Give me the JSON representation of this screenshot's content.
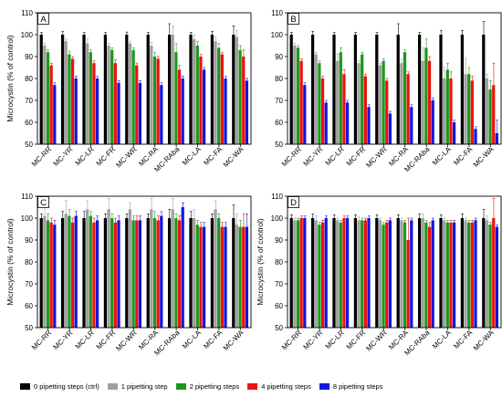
{
  "chart_data": [
    {
      "type": "bar",
      "panel_label": "A",
      "ylabel": "Microcystin  (% of control)",
      "ylim": [
        50,
        110
      ],
      "yticks": [
        50,
        60,
        70,
        80,
        90,
        100,
        110
      ],
      "categories": [
        "MC-RR",
        "MC-YR",
        "MC-LR",
        "MC-FR",
        "MC-WR",
        "MC-RA",
        "MC-RAba",
        "MC-LA",
        "MC-FA",
        "MC-WA"
      ],
      "series": [
        {
          "name": "0 pipetting steps (ctrl)",
          "values": [
            100,
            100,
            100,
            100,
            100,
            100,
            100,
            100,
            100,
            100
          ],
          "errors": [
            1,
            1.5,
            1,
            1,
            1.2,
            1,
            5,
            1,
            1.5,
            4
          ]
        },
        {
          "name": "1 pipetting step",
          "values": [
            95,
            97,
            96,
            95,
            96,
            95,
            100,
            98,
            97,
            99
          ],
          "errors": [
            1,
            1,
            2,
            1,
            1,
            1.5,
            4,
            2,
            2,
            3
          ]
        },
        {
          "name": "2 pipetting steps",
          "values": [
            92,
            91,
            92,
            93,
            93,
            90,
            92,
            95,
            94,
            93
          ],
          "errors": [
            1,
            1.5,
            1,
            1,
            1,
            2,
            4,
            2,
            2,
            2
          ]
        },
        {
          "name": "4 pipetting steps",
          "values": [
            86,
            89,
            87,
            87,
            86,
            89,
            84,
            90,
            91,
            90
          ],
          "errors": [
            1,
            1,
            1,
            1.5,
            1,
            1,
            2,
            1,
            1,
            3
          ]
        },
        {
          "name": "8 pipetting steps",
          "values": [
            77,
            80,
            80,
            78,
            78,
            77,
            80,
            84,
            80,
            79
          ],
          "errors": [
            1,
            1,
            1,
            1,
            1,
            1,
            1,
            1,
            1,
            1
          ]
        }
      ]
    },
    {
      "type": "bar",
      "panel_label": "B",
      "ylabel": "",
      "ylim": [
        50,
        110
      ],
      "yticks": [
        50,
        60,
        70,
        80,
        90,
        100,
        110
      ],
      "categories": [
        "MC-RR",
        "MC-YR",
        "MC-LR",
        "MC-FR",
        "MC-WR",
        "MC-RA",
        "MC-RAba",
        "MC-LA",
        "MC-FA",
        "MC-WA"
      ],
      "series": [
        {
          "name": "0 pipetting steps (ctrl)",
          "values": [
            100,
            100,
            100,
            100,
            100,
            100,
            100,
            100,
            100,
            100
          ],
          "errors": [
            1,
            1.5,
            1,
            1,
            1,
            5,
            1,
            2,
            2,
            6
          ]
        },
        {
          "name": "1 pipetting step",
          "values": [
            95,
            91,
            88,
            87,
            86,
            87,
            88,
            80,
            82,
            80
          ],
          "errors": [
            1,
            1,
            3,
            1,
            1,
            2,
            6,
            5,
            7,
            2
          ]
        },
        {
          "name": "2 pipetting steps",
          "values": [
            94,
            87,
            92,
            91,
            88,
            92,
            94,
            84,
            82,
            75
          ],
          "errors": [
            1,
            1,
            2,
            1,
            1,
            1,
            4,
            3,
            3,
            4
          ]
        },
        {
          "name": "4 pipetting steps",
          "values": [
            88,
            80,
            82,
            81,
            79,
            82,
            88,
            80,
            79,
            77
          ],
          "errors": [
            1,
            1,
            2,
            1,
            1,
            1,
            2,
            3,
            2,
            10
          ]
        },
        {
          "name": "8 pipetting steps",
          "values": [
            77,
            69,
            69,
            67,
            64,
            67,
            70,
            60,
            57,
            55
          ],
          "errors": [
            1,
            1,
            1,
            1,
            1,
            1,
            1,
            1,
            1,
            6
          ]
        }
      ]
    },
    {
      "type": "bar",
      "panel_label": "C",
      "ylabel": "Microcystin  (% of control)",
      "ylim": [
        50,
        110
      ],
      "yticks": [
        50,
        60,
        70,
        80,
        90,
        100,
        110
      ],
      "categories": [
        "MC-RR",
        "MC-YR",
        "MC-LR",
        "MC-FR",
        "MC-WR",
        "MC-RA",
        "MC-RAba",
        "MC-LA",
        "MC-FA",
        "MC-WA"
      ],
      "series": [
        {
          "name": "0 pipetting steps (ctrl)",
          "values": [
            100,
            100,
            100,
            100,
            100,
            100,
            100,
            100,
            100,
            100
          ],
          "errors": [
            2,
            3,
            3,
            2,
            2,
            2,
            4,
            3,
            2,
            6
          ]
        },
        {
          "name": "1 pipetting step",
          "values": [
            101,
            102,
            104,
            104,
            104,
            104,
            104,
            100,
            104,
            97
          ],
          "errors": [
            5,
            6,
            4,
            5,
            3,
            5,
            5,
            4,
            4,
            5
          ]
        },
        {
          "name": "2 pipetting steps",
          "values": [
            99,
            101,
            101,
            100,
            99,
            100,
            100,
            97,
            100,
            96
          ],
          "errors": [
            3,
            3,
            2,
            2,
            2,
            3,
            2,
            2,
            2,
            3
          ]
        },
        {
          "name": "4 pipetting steps",
          "values": [
            98,
            98,
            98,
            98,
            99,
            99,
            99,
            96,
            96,
            96
          ],
          "errors": [
            2,
            2,
            2,
            2,
            2,
            2,
            2,
            2,
            2,
            6
          ]
        },
        {
          "name": "8 pipetting steps",
          "values": [
            97,
            101,
            99,
            99,
            99,
            101,
            105,
            96,
            96,
            96
          ],
          "errors": [
            2,
            2,
            2,
            2,
            2,
            2,
            2,
            2,
            2,
            6
          ]
        }
      ]
    },
    {
      "type": "bar",
      "panel_label": "D",
      "ylabel": "Microcystin  (% of control)",
      "ylim": [
        50,
        110
      ],
      "yticks": [
        50,
        60,
        70,
        80,
        90,
        100,
        110
      ],
      "categories": [
        "MC-RR",
        "MC-YR",
        "MC-LR",
        "MC-FR",
        "MC-WR",
        "MC-RA",
        "MC-RAba",
        "MC-LA",
        "MC-FA",
        "MC-WA"
      ],
      "series": [
        {
          "name": "0 pipetting steps (ctrl)",
          "values": [
            100,
            100,
            100,
            100,
            100,
            100,
            100,
            100,
            100,
            100
          ],
          "errors": [
            1.5,
            2,
            1.5,
            1.5,
            1.5,
            1.5,
            2,
            1.5,
            2,
            4
          ]
        },
        {
          "name": "1 pipetting step",
          "values": [
            99,
            99,
            99,
            99,
            99,
            99,
            100,
            99,
            99,
            99
          ],
          "errors": [
            1,
            2,
            1,
            1.5,
            1,
            1,
            2,
            1,
            1,
            2
          ]
        },
        {
          "name": "2 pipetting steps",
          "values": [
            99,
            97,
            98,
            99,
            97,
            98,
            98,
            98,
            98,
            97
          ],
          "errors": [
            1,
            1,
            1,
            1,
            1,
            1,
            1,
            1,
            1,
            1
          ]
        },
        {
          "name": "4 pipetting steps",
          "values": [
            100,
            98,
            100,
            99,
            98,
            90,
            96,
            98,
            98,
            100
          ],
          "errors": [
            1,
            1,
            1,
            1,
            1,
            10,
            2,
            1,
            1,
            9
          ]
        },
        {
          "name": "8 pipetting steps",
          "values": [
            100,
            100,
            100,
            100,
            99,
            99,
            99,
            98,
            99,
            96
          ],
          "errors": [
            1,
            1,
            1,
            1,
            1,
            1,
            1,
            1,
            1,
            1
          ]
        }
      ]
    }
  ],
  "legend": [
    {
      "label": "0 pipetting steps (ctrl)",
      "color": "#000000"
    },
    {
      "label": "1 pipetting step",
      "color": "#a0a0a0"
    },
    {
      "label": "2 pipetting steps",
      "color": "#1a9a1a"
    },
    {
      "label": "4 pipetting steps",
      "color": "#ee1111"
    },
    {
      "label": "8 pipetting steps",
      "color": "#1515dd"
    }
  ]
}
